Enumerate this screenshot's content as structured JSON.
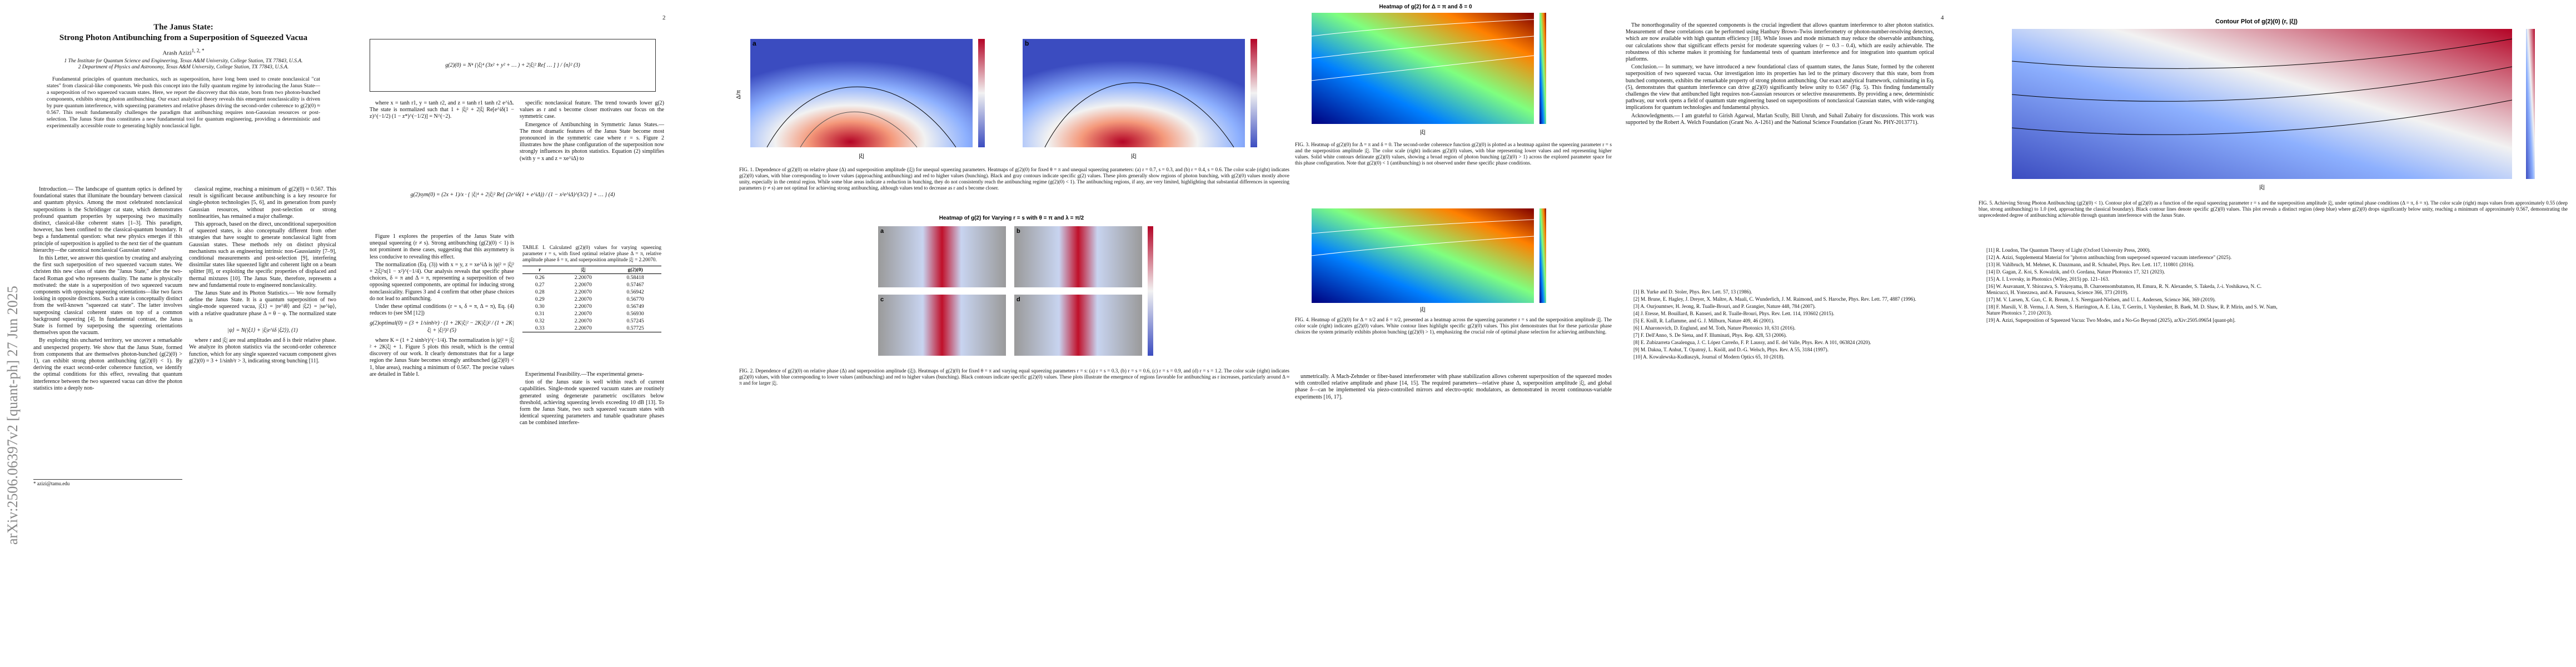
{
  "side_label": "arXiv:2506.06397v2 [quant-ph] 27 Jun 2025",
  "page1": {
    "title": [
      "The Janus State:",
      "Strong Photon Antibunching from a Superposition of Squeezed Vacua"
    ],
    "author": "Arash Azizi",
    "author_marks": "1, 2, *",
    "affiliations": [
      "1 The Institute for Quantum Science and Engineering, Texas A&M University, College Station, TX 77843, U.S.A.",
      "2 Department of Physics and Astronomy, Texas A&M University, College Station, TX 77843, U.S.A."
    ],
    "abstract": "Fundamental principles of quantum mechanics, such as superposition, have long been used to create nonclassical \"cat states\" from classical-like components. We push this concept into the fully quantum regime by introducing the Janus State—a superposition of two squeezed vacuum states. Here, we report the discovery that this state, born from two photon-bunched components, exhibits strong photon antibunching. Our exact analytical theory reveals this emergent nonclassicality is driven by pure quantum interference, with squeezing parameters and relative phases driving the second-order coherence to g(2)(0) ≈ 0.567. This result fundamentally challenges the paradigm that antibunching requires non-Gaussian resources or post-selection. The Janus State thus constitutes a new fundamental tool for quantum engineering, providing a deterministic and experimentally accessible route to generating highly nonclassical light.",
    "col1": [
      "Introduction.— The landscape of quantum optics is defined by foundational states that illuminate the boundary between classical and quantum physics. Among the most celebrated nonclassical superpositions is the Schrödinger cat state, which demonstrates profound quantum properties by superposing two maximally distinct, classical-like coherent states [1–3]. This paradigm, however, has been confined to the classical-quantum boundary. It begs a fundamental question: what new physics emerges if this principle of superposition is applied to the next tier of the quantum hierarchy—the canonical nonclassical Gaussian states?",
      "In this Letter, we answer this question by creating and analyzing the first such superposition of two squeezed vacuum states. We christen this new class of states the \"Janus State,\" after the two-faced Roman god who represents duality. The name is physically motivated: the state is a superposition of two squeezed vacuum components with opposing squeezing orientations—like two faces looking in opposite directions. Such a state is conceptually distinct from the well-known \"squeezed cat state\". The latter involves superposing classical coherent states on top of a common background squeezing [4]. In fundamental contrast, the Janus State is formed by superposing the squeezing orientations themselves upon the vacuum.",
      "By exploring this uncharted territory, we uncover a remarkable and unexpected property. We show that the Janus State, formed from components that are themselves photon-bunched (g(2)(0) > 1), can exhibit strong photon antibunching (g(2)(0) < 1). By deriving the exact second-order coherence function, we identify the optimal conditions for this effect, revealing that quantum interference between the two squeezed vacua can drive the photon statistics into a deeply non-"
    ],
    "col2": [
      "classical regime, reaching a minimum of g(2)(0) ≈ 0.567. This result is significant because antibunching is a key resource for single-photon technologies [5, 6], and its generation from purely Gaussian resources, without post-selection or strong nonlinearities, has remained a major challenge.",
      "This approach, based on the direct, unconditional superposition of squeezed states, is also conceptually different from other strategies that have sought to generate nonclassical light from Gaussian states. These methods rely on distinct physical mechanisms such as engineering intrinsic non-Gaussianity [7–9], conditional measurements and post-selection [9], interfering dissimilar states like squeezed light and coherent light on a beam splitter [8], or exploiting the specific properties of displaced and thermal mixtures [10]. The Janus State, therefore, represents a new and fundamental route to engineered nonclassicality.",
      "The Janus State and its Photon Statistics.— We now formally define the Janus State. It is a quantum superposition of two single-mode squeezed vacua, |ξ1⟩ = |re^iθ⟩ and |ξ2⟩ = |se^iφ⟩, with a relative quadrature phase Δ = θ − φ. The normalized state is",
      "|ψ⟩ = N(|ξ1⟩ + |ξ|e^iδ |ξ2⟩),   (1)",
      "where r and |ξ| are real amplitudes and δ is their relative phase. We analyze its photon statistics via the second-order coherence function, which for any single squeezed vacuum component gives g(2)(0) = 3 + 1/sinh²r > 3, indicating strong bunching [11]."
    ],
    "footnote": "* azizi@tamu.edu"
  },
  "page2": {
    "number": "2",
    "eq_box": "g(2)(0) = N⁴ {|ξ|⁴ (3x² + y² + … ) + 2|ξ|² Re[ … ] } / ⟨n⟩²   (3)",
    "col1_top": "where x = tanh r1, y = tanh r2, and z = tanh r1 tanh r2 e^iΔ. The state is normalized such that 1 + |ξ|² + 2|ξ| Re[e^iδ(1 − z)^(−1/2) (1 − z*)^(−1/2)] = N^(−2).",
    "col2_top": "specific nonclassical feature. The trend towards lower g(2) values as r and s become closer motivates our focus on the symmetric case.",
    "col2_head": "Emergence of Antibunching in Symmetric Janus States.— The most dramatic features of the Janus State become most pronounced in the symmetric case where r = s. Figure 2 illustrates how the phase configuration of the superposition now strongly influences its photon statistics. Equation (2) simplifies (with y = x and z = xe^iΔ) to",
    "eq4": "g(2)sym(0) = (2x + 1)/x · { |ξ|⁴ + 2|ξ|² Re[ (2e^iδ(1 + e^iΔ)) / (1 − x²e^iΔ)^(3/2) ] + … }   (4)",
    "col1_bottom": [
      "Figure 1 explores the properties of the Janus State with unequal squeezing (r ≠ s). Strong antibunching (g(2)(0) < 1) is not prominent in these cases, suggesting that this asymmetry is less conducive to revealing this effect.",
      "The normalization (Eq. (3)) with x = y, z = xe^iΔ is |ψ|² = |ξ|² + 2|ξ|²x(1 − x²)^(−1/4). Our analysis reveals that specific phase choices, δ = π and Δ = π, representing a superposition of two opposing squeezed components, are optimal for inducing strong nonclassicality. Figures 3 and 4 confirm that other phase choices do not lead to antibunching.",
      "Under these optimal conditions (r = s, δ = π, Δ = π), Eq. (4) reduces to (see SM [12])",
      "g(2)optimal(0) = (3 + 1/sinh²r) · (1 + 2K|ξ|² − 2K|ξ|)² / (1 + 2K|ξ| + |ξ|²)²   (5)",
      "where K = (1 + 2 sinh²r)^(−1/4). The normalization is |ψ|² = |ξ|² + 2K|ξ| + 1. Figure 5 plots this result, which is the central discovery of our work. It clearly demonstrates that for a large region the Janus State becomes strongly antibunched (g(2)(0) < 1, blue areas), reaching a minimum of 0.567. The precise values are detailed in Table I."
    ],
    "table": {
      "caption": "TABLE I. Calculated g(2)(0) values for varying squeezing parameter r = s, with fixed optimal relative phase Δ = π, relative amplitude phase δ = π, and superposition amplitude |ξ| = 2.20070.",
      "headers": [
        "r",
        "|ξ|",
        "g(2)(0)"
      ],
      "rows": [
        [
          "0.26",
          "2.20070",
          "0.58418"
        ],
        [
          "0.27",
          "2.20070",
          "0.57467"
        ],
        [
          "0.28",
          "2.20070",
          "0.56942"
        ],
        [
          "0.29",
          "2.20070",
          "0.56770"
        ],
        [
          "0.30",
          "2.20070",
          "0.56749"
        ],
        [
          "0.31",
          "2.20070",
          "0.56930"
        ],
        [
          "0.32",
          "2.20070",
          "0.57245"
        ],
        [
          "0.33",
          "2.20070",
          "0.57725"
        ]
      ]
    },
    "col2_bottom": "tion of the Janus state is well within reach of current capabilities. Single-mode squeezed vacuum states are routinely generated using degenerate parametric oscillators below threshold, achieving squeezing levels exceeding 10 dB [13]. To form the Janus State, two such squeezed vacuum states with identical squeezing parameters and tunable quadrature phases can be combined interfere-",
    "experimental": "Experimental Feasibility.—The experimental genera-"
  },
  "figures": {
    "fig1_caption": "FIG. 1. Dependence of g(2)(0) on relative phase (Δ) and superposition amplitude (|ξ|) for unequal squeezing parameters. Heatmaps of g(2)(0) for fixed θ = π and unequal squeezing parameters: (a) r = 0.7, s = 0.3, and (b) r = 0.4, s = 0.6. The color scale (right) indicates g(2)(0) values, with blue corresponding to lower values (approaching antibunching) and red to higher values (bunching). Black and gray contours indicate specific g(2) values. These plots generally show regions of photon bunching, with g(2)(0) values mostly above unity, especially in the central region. While some blue areas indicate a reduction in bunching, they do not consistently reach the antibunching regime (g(2)(0) < 1). The antibunching regions, if any, are very limited, highlighting that substantial differences in squeezing parameters (r ≠ s) are not optimal for achieving strong antibunching, although values tend to decrease as r and s become closer.",
    "fig2_title": "Heatmap of g(2) for Varying r = s with θ = π and λ = π/2",
    "fig2_caption": "FIG. 2. Dependence of g(2)(0) on relative phase (Δ) and superposition amplitude (|ξ|). Heatmaps of g(2)(0) for fixed θ = π and varying equal squeezing parameters r = s: (a) r = s = 0.3, (b) r = s = 0.6, (c) r = s = 0.9, and (d) r = s = 1.2. The color scale (right) indicates g(2)(0) values, with blue corresponding to lower values (antibunching) and red to higher values (bunching). Black contours indicate specific g(2)(0) values. These plots illustrate the emergence of regions favorable for antibunching as r increases, particularly around Δ ≈ π and for larger |ξ|.",
    "fig3_title": "Heatmap of g(2) for Δ = π and δ = 0",
    "fig3_caption": "FIG. 3. Heatmap of g(2)(0) for Δ = π and δ = 0. The second-order coherence function g(2)(0) is plotted as a heatmap against the squeezing parameter r = s and the superposition amplitude |ξ|. The color scale (right) indicates g(2)(0) values, with blue representing lower values and red representing higher values. Solid white contours delineate g(2)(0) values, showing a broad region of photon bunching (g(2)(0) > 1) across the explored parameter space for this phase configuration. Note that g(2)(0) < 1 (antibunching) is not observed under these specific phase conditions.",
    "fig4_caption": "FIG. 4. Heatmap of g(2)(0) for Δ = π/2 and δ = π/2, presented as a heatmap across the squeezing parameter r = s and the superposition amplitude |ξ|. The color scale (right) indicates g(2)(0) values. White contour lines highlight specific g(2)(0) values. This plot demonstrates that for these particular phase choices the system primarily exhibits photon bunching (g(2)(0) > 1), emphasizing the crucial role of optimal phase selection for achieving antibunching.",
    "fig5_title": "Contour Plot of g(2)(0) (r, |ξ|)",
    "fig5_caption": "FIG. 5. Achieving Strong Photon Antibunching (g(2)(0) < 1). Contour plot of g(2)(0) as a function of the equal squeezing parameter r = s and the superposition amplitude |ξ|, under optimal phase conditions (Δ = π, δ = π). The color scale (right) maps values from approximately 0.55 (deep blue, strong antibunching) to 1.0 (red, approaching the classical boundary). Black contour lines denote specific g(2)(0) values. This plot reveals a distinct region (deep blue) where g(2)(0) drops significantly below unity, reaching a minimum of approximately 0.567, demonstrating the unprecedented degree of antibunching achievable through quantum interference with the Janus State.",
    "axis_x": "|ξ|",
    "axis_y": "Δ/π",
    "panels": [
      "a",
      "b",
      "c",
      "d"
    ]
  },
  "page3": {
    "col1_bottom": "unmetrically. A Mach-Zehnder or fiber-based interferometer with phase stabilization allows coherent superposition of the squeezed modes with controlled relative amplitude and phase [14, 15]. The required parameters—relative phase Δ, superposition amplitude |ξ|, and global phase δ—can be implemented via piezo-controlled mirrors and electro-optic modulators, as demonstrated in recent continuous-variable experiments [16, 17]."
  },
  "page4": {
    "number": "4",
    "paragraphs": [
      "The nonorthogonality of the squeezed components is the crucial ingredient that allows quantum interference to alter photon statistics. Measurement of these correlations can be performed using Hanbury Brown–Twiss interferometry or photon-number-resolving detectors, which are now available with high quantum efficiency [18]. While losses and mode mismatch may reduce the observable antibunching, our calculations show that significant effects persist for moderate squeezing values (r ∼ 0.3 – 0.4), which are easily achievable. The robustness of this scheme makes it promising for fundamental tests of quantum interference and for integration into quantum optical platforms.",
      "Conclusion.— In summary, we have introduced a new foundational class of quantum states, the Janus State, formed by the coherent superposition of two squeezed vacua. Our investigation into its properties has led to the primary discovery that this state, born from bunched components, exhibits the remarkable property of strong photon antibunching. Our exact analytical framework, culminating in Eq. (5), demonstrates that quantum interference can drive g(2)(0) significantly below unity to 0.567 (Fig. 5). This finding fundamentally challenges the view that antibunched light requires non-Gaussian resources or selective measurements. By providing a new, deterministic pathway, our work opens a field of quantum state engineering based on superpositions of nonclassical Gaussian states, with wide-ranging implications for quantum technologies and fundamental physics.",
      "Acknowledgments.— I am grateful to Girish Agarwal, Marlan Scully, Bill Unruh, and Suhail Zubairy for discussions. This work was supported by the Robert A. Welch Foundation (Grant No. A-1261) and the National Science Foundation (Grant No. PHY-2013771)."
    ],
    "refs_a": [
      "[1] B. Yurke and D. Stoler, Phys. Rev. Lett. 57, 13 (1986).",
      "[2] M. Brune, E. Hagley, J. Dreyer, X. Maître, A. Maali, C. Wunderlich, J. M. Raimond, and S. Haroche, Phys. Rev. Lett. 77, 4887 (1996).",
      "[3] A. Ourjoumtsev, H. Jeong, R. Tualle-Brouri, and P. Grangier, Nature 448, 784 (2007).",
      "[4] J. Etesse, M. Bouillard, B. Kanseri, and R. Tualle-Brouri, Phys. Rev. Lett. 114, 193602 (2015).",
      "[5] E. Knill, R. Laflamme, and G. J. Milburn, Nature 409, 46 (2001).",
      "[6] I. Aharonovich, D. Englund, and M. Toth, Nature Photonics 10, 631 (2016).",
      "[7] F. Dell'Anno, S. De Siena, and F. Illuminati, Phys. Rep. 428, 53 (2006).",
      "[8] E. Zubizarreta Casalengua, J. C. López Carreño, F. P. Laussy, and E. del Valle, Phys. Rev. A 101, 063824 (2020).",
      "[9] M. Dakna, T. Anhut, T. Opatrný, L. Knöll, and D.-G. Welsch, Phys. Rev. A 55, 3184 (1997).",
      "[10] A. Kowalewska-Kudłaszyk, Journal of Modern Optics 65, 10 (2018)."
    ],
    "refs_b": [
      "[11] R. Loudon, The Quantum Theory of Light (Oxford University Press, 2000).",
      "[12] A. Azizi, Supplemental Material for \"photon antibunching from superposed squeezed vacuum interference\" (2025).",
      "[13] H. Vahlbruch, M. Mehmet, K. Danzmann, and R. Schnabel, Phys. Rev. Lett. 117, 110801 (2016).",
      "[14] D. Gagan, Z. Koi, S. Kowalzik, and O. Gordana, Nature Photonics 17, 321 (2023).",
      "[15] A. I. Lvovsky, in Photonics (Wiley, 2015) pp. 121–163.",
      "[16] W. Asavanant, Y. Shiozawa, S. Yokoyama, B. Charoensombutamon, H. Emura, R. N. Alexander, S. Takeda, J.-i. Yoshikawa, N. C. Menicucci, H. Yonezawa, and A. Furusawa, Science 366, 373 (2019).",
      "[17] M. V. Larsen, X. Guo, C. R. Breum, J. S. Neergaard-Nielsen, and U. L. Andersen, Science 366, 369 (2019).",
      "[18] F. Marsili, V. B. Verma, J. A. Stern, S. Harrington, A. E. Lita, T. Gerrits, I. Vayshenker, B. Baek, M. D. Shaw, R. P. Mirin, and S. W. Nam, Nature Photonics 7, 210 (2013).",
      "[19] A. Azizi, Superposition of Squeezed Vacua: Two Modes, and a No-Go Beyond (2025), arXiv:2505.09654 [quant-ph]."
    ]
  }
}
